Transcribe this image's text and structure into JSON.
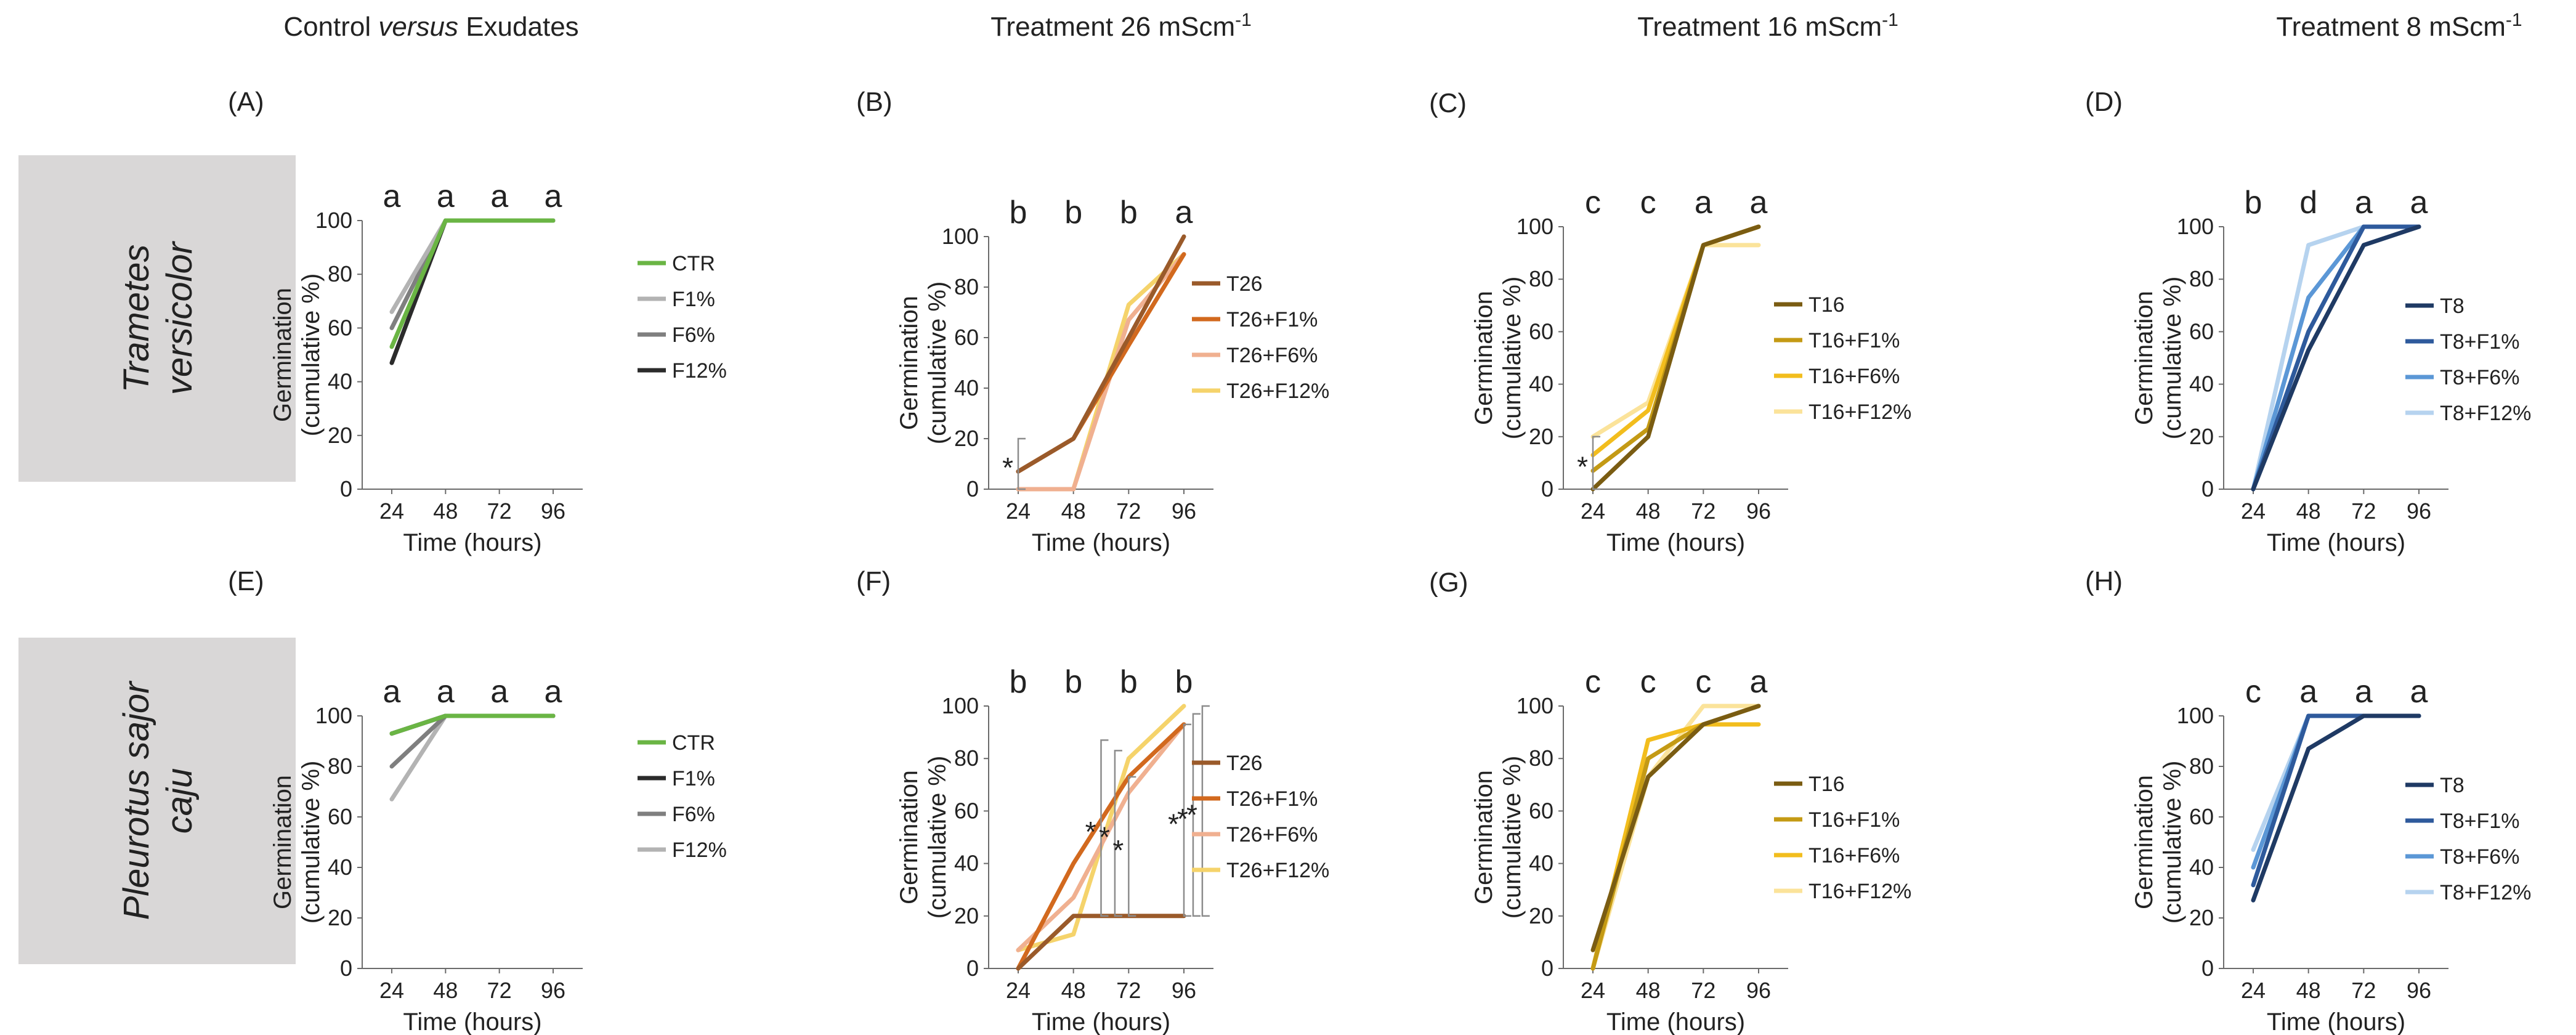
{
  "column_titles": [
    {
      "pre": "Control ",
      "italic": "versus",
      "post": " Exudates",
      "sup": ""
    },
    {
      "pre": "Treatment 26 mScm",
      "italic": "",
      "post": "",
      "sup": "-1"
    },
    {
      "pre": "Treatment 16 mScm",
      "italic": "",
      "post": "",
      "sup": "-1"
    },
    {
      "pre": "Treatment 8 mScm",
      "italic": "",
      "post": "",
      "sup": "-1"
    }
  ],
  "row_labels": [
    {
      "line1": "Trametes",
      "line2": "versicolor"
    },
    {
      "line1": "Pleurotus sajor",
      "line2": "caju"
    }
  ],
  "colors": {
    "row_label_bg": "#d9d7d7",
    "axis": "#6b6b6b",
    "bracket": "#8c8c8c"
  },
  "chart_data": [
    {
      "type": "line",
      "panel": "(A)",
      "title": "",
      "xlabel": "Time (hours)",
      "ylabel": "Germination (cumulative %)",
      "ylabel_lines": [
        "Germination",
        "(cumulative %)"
      ],
      "x": [
        24,
        48,
        72,
        96
      ],
      "ylim": [
        0,
        100
      ],
      "yticks": [
        0,
        20,
        40,
        60,
        80,
        100
      ],
      "significance": [
        "a",
        "a",
        "a",
        "a"
      ],
      "series": [
        {
          "name": "CTR",
          "color": "#6ab544",
          "values": [
            53,
            100,
            100,
            100
          ]
        },
        {
          "name": "F1%",
          "color": "#b3b3b3",
          "values": [
            66,
            100,
            100,
            100
          ]
        },
        {
          "name": "F6%",
          "color": "#7f7f7f",
          "values": [
            60,
            100,
            100,
            100
          ]
        },
        {
          "name": "F12%",
          "color": "#2b2b2b",
          "values": [
            47,
            100,
            100,
            100
          ]
        }
      ],
      "annotations": []
    },
    {
      "type": "line",
      "panel": "(B)",
      "title": "",
      "xlabel": "Time (hours)",
      "ylabel": "Germination (cumulative %)",
      "ylabel_lines": [
        "Germination",
        "(cumulative %)"
      ],
      "x": [
        24,
        48,
        72,
        96
      ],
      "ylim": [
        0,
        100
      ],
      "yticks": [
        0,
        20,
        40,
        60,
        80,
        100
      ],
      "significance": [
        "b",
        "b",
        "b",
        "a"
      ],
      "series": [
        {
          "name": "T26",
          "color": "#9a5a2a",
          "values": [
            7,
            20,
            60,
            100
          ]
        },
        {
          "name": "T26+F1%",
          "color": "#d2691e",
          "values": [
            7,
            20,
            57,
            93
          ]
        },
        {
          "name": "T26+F6%",
          "color": "#f0b090",
          "values": [
            0,
            0,
            67,
            93
          ]
        },
        {
          "name": "T26+F12%",
          "color": "#f5d36b",
          "values": [
            0,
            0,
            73,
            93
          ]
        }
      ],
      "annotations": [
        {
          "label": "*",
          "x_from": 24,
          "x_to": 48,
          "y_from": 0,
          "y_to": 20
        }
      ]
    },
    {
      "type": "line",
      "panel": "(C)",
      "title": "",
      "xlabel": "Time (hours)",
      "ylabel": "Germination (cumulative %)",
      "ylabel_lines": [
        "Germination",
        "(cumulative %)"
      ],
      "x": [
        24,
        48,
        72,
        96
      ],
      "ylim": [
        0,
        100
      ],
      "yticks": [
        0,
        20,
        40,
        60,
        80,
        100
      ],
      "significance": [
        "c",
        "c",
        "a",
        "a"
      ],
      "series": [
        {
          "name": "T16",
          "color": "#7a5c12",
          "values": [
            0,
            20,
            93,
            100
          ]
        },
        {
          "name": "T16+F1%",
          "color": "#c49a14",
          "values": [
            7,
            23,
            93,
            100
          ]
        },
        {
          "name": "T16+F6%",
          "color": "#f2bd1d",
          "values": [
            13,
            30,
            93,
            100
          ]
        },
        {
          "name": "T16+F12%",
          "color": "#fbe39a",
          "values": [
            20,
            33,
            93,
            93
          ]
        }
      ],
      "annotations": [
        {
          "label": "*",
          "x_from": 24,
          "x_to": 24,
          "y_from": 0,
          "y_to": 20
        }
      ]
    },
    {
      "type": "line",
      "panel": "(D)",
      "title": "",
      "xlabel": "Time (hours)",
      "ylabel": "Germination (cumulative %)",
      "ylabel_lines": [
        "Germination",
        "(cumulative %)"
      ],
      "x": [
        24,
        48,
        72,
        96
      ],
      "ylim": [
        0,
        100
      ],
      "yticks": [
        0,
        20,
        40,
        60,
        80,
        100
      ],
      "significance": [
        "b",
        "d",
        "a",
        "a"
      ],
      "series": [
        {
          "name": "T8",
          "color": "#1f3a64",
          "values": [
            0,
            53,
            93,
            100
          ]
        },
        {
          "name": "T8+F1%",
          "color": "#2e5a9c",
          "values": [
            0,
            60,
            100,
            100
          ]
        },
        {
          "name": "T8+F6%",
          "color": "#5b97d6",
          "values": [
            0,
            73,
            100,
            100
          ]
        },
        {
          "name": "T8+F12%",
          "color": "#b6d3ef",
          "values": [
            0,
            93,
            100,
            100
          ]
        }
      ],
      "annotations": []
    },
    {
      "type": "line",
      "panel": "(E)",
      "title": "",
      "xlabel": "Time (hours)",
      "ylabel": "Germination (cumulative %)",
      "ylabel_lines": [
        "Germination",
        "(cumulative %)"
      ],
      "x": [
        24,
        48,
        72,
        96
      ],
      "ylim": [
        0,
        100
      ],
      "yticks": [
        0,
        20,
        40,
        60,
        80,
        100
      ],
      "significance": [
        "a",
        "a",
        "a",
        "a"
      ],
      "series": [
        {
          "name": "CTR",
          "color": "#6ab544",
          "values": [
            93,
            100,
            100,
            100
          ]
        },
        {
          "name": "F1%",
          "color": "#2b2b2b",
          "values": [
            93,
            100,
            100,
            100
          ]
        },
        {
          "name": "F6%",
          "color": "#7f7f7f",
          "values": [
            80,
            100,
            100,
            100
          ]
        },
        {
          "name": "F12%",
          "color": "#b3b3b3",
          "values": [
            67,
            100,
            100,
            100
          ]
        }
      ],
      "annotations": []
    },
    {
      "type": "line",
      "panel": "(F)",
      "title": "",
      "xlabel": "Time (hours)",
      "ylabel": "Germination (cumulative %)",
      "ylabel_lines": [
        "Germination",
        "(cumulative %)"
      ],
      "x": [
        24,
        48,
        72,
        96
      ],
      "ylim": [
        0,
        100
      ],
      "yticks": [
        0,
        20,
        40,
        60,
        80,
        100
      ],
      "significance": [
        "b",
        "b",
        "b",
        "b"
      ],
      "series": [
        {
          "name": "T26",
          "color": "#9a5a2a",
          "values": [
            0,
            20,
            20,
            20
          ]
        },
        {
          "name": "T26+F1%",
          "color": "#d2691e",
          "values": [
            0,
            40,
            73,
            93
          ]
        },
        {
          "name": "T26+F6%",
          "color": "#f0b090",
          "values": [
            7,
            27,
            67,
            93
          ]
        },
        {
          "name": "T26+F12%",
          "color": "#f5d36b",
          "values": [
            7,
            13,
            80,
            100
          ]
        }
      ],
      "annotations": [
        {
          "label": "*",
          "x_from": 60,
          "x_to": 60,
          "y_from": 20,
          "y_to": 87
        },
        {
          "label": "*",
          "x_from": 66,
          "x_to": 66,
          "y_from": 20,
          "y_to": 83
        },
        {
          "label": "*",
          "x_from": 72,
          "x_to": 72,
          "y_from": 20,
          "y_to": 73
        },
        {
          "label": "*",
          "x_from": 96,
          "x_to": 96,
          "y_from": 20,
          "y_to": 93
        },
        {
          "label": "*",
          "x_from": 100,
          "x_to": 100,
          "y_from": 20,
          "y_to": 97
        },
        {
          "label": "*",
          "x_from": 104,
          "x_to": 104,
          "y_from": 20,
          "y_to": 100
        }
      ]
    },
    {
      "type": "line",
      "panel": "(G)",
      "title": "",
      "xlabel": "Time (hours)",
      "ylabel": "Germination (cumulative %)",
      "ylabel_lines": [
        "Germination",
        "(cumulative %)"
      ],
      "x": [
        24,
        48,
        72,
        96
      ],
      "ylim": [
        0,
        100
      ],
      "yticks": [
        0,
        20,
        40,
        60,
        80,
        100
      ],
      "significance": [
        "c",
        "c",
        "c",
        "a"
      ],
      "series": [
        {
          "name": "T16",
          "color": "#7a5c12",
          "values": [
            7,
            73,
            93,
            100
          ]
        },
        {
          "name": "T16+F1%",
          "color": "#c49a14",
          "values": [
            0,
            80,
            93,
            100
          ]
        },
        {
          "name": "T16+F6%",
          "color": "#f2bd1d",
          "values": [
            0,
            87,
            93,
            93
          ]
        },
        {
          "name": "T16+F12%",
          "color": "#fbe39a",
          "values": [
            0,
            73,
            100,
            100
          ]
        }
      ],
      "annotations": []
    },
    {
      "type": "line",
      "panel": "(H)",
      "title": "",
      "xlabel": "Time (hours)",
      "ylabel": "Germination (cumulative %)",
      "ylabel_lines": [
        "Germination",
        "(cumulative %)"
      ],
      "x": [
        24,
        48,
        72,
        96
      ],
      "ylim": [
        0,
        100
      ],
      "yticks": [
        0,
        20,
        40,
        60,
        80,
        100
      ],
      "significance": [
        "c",
        "a",
        "a",
        "a"
      ],
      "series": [
        {
          "name": "T8",
          "color": "#1f3a64",
          "values": [
            27,
            87,
            100,
            100
          ]
        },
        {
          "name": "T8+F1%",
          "color": "#2e5a9c",
          "values": [
            33,
            100,
            100,
            100
          ]
        },
        {
          "name": "T8+F6%",
          "color": "#5b97d6",
          "values": [
            40,
            100,
            100,
            100
          ]
        },
        {
          "name": "T8+F12%",
          "color": "#b6d3ef",
          "values": [
            47,
            100,
            100,
            100
          ]
        }
      ],
      "annotations": []
    }
  ]
}
